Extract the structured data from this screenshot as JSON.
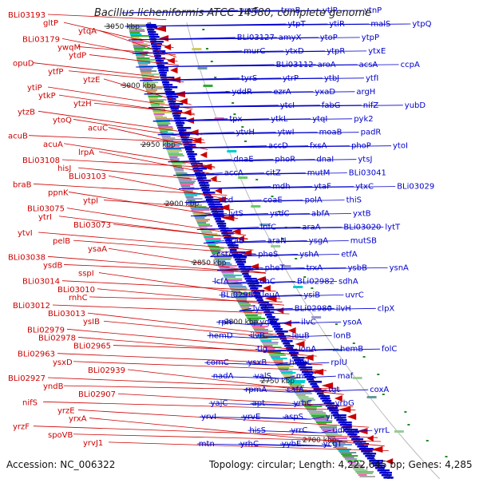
{
  "title": "Bacillus licheniformis ATCC 14580, complete genome",
  "footer": {
    "accession": "Accession: NC_006322",
    "summary": "Topology: circular; Length: 4,222,645 bp; Genes: 4,285"
  },
  "ruler_labels": [
    "3050 kbp",
    "3000 kbp",
    "2950 kbp",
    "2900 kbp",
    "2850 kbp",
    "2800 kbp",
    "2750 kbp",
    "2700 kbp"
  ],
  "colors": {
    "reverse_strand": "#cc0000",
    "forward_strand": "#0000cc",
    "highlight": "#33aadd",
    "backbone": "#888888",
    "track_green": "#228822"
  },
  "left_labels": [
    "BLi03193",
    "gltP",
    "ytqA",
    "BLi03179",
    "ywqM",
    "ytdP",
    "opuD",
    "ytfP",
    "ytzE",
    "ytiP",
    "ytkP",
    "ytzH",
    "ytzB",
    "ytoQ",
    "acuC",
    "acuB",
    "acuA",
    "lrpA",
    "BLi03108",
    "hisJ",
    "BLi03103",
    "braB",
    "ppnK",
    "ytpI",
    "BLi03075",
    "ytrI",
    "BLi03073",
    "ytvI",
    "pelB",
    "ysaA",
    "BLi03038",
    "ysdB",
    "sspI",
    "BLi03014",
    "BLi03010",
    "rnhC",
    "BLi03012",
    "BLi03013",
    "ysIB",
    "BLi02979",
    "BLi02978",
    "BLi02965",
    "BLi02963",
    "ysxD",
    "BLi02939",
    "BLi02927",
    "yndB",
    "BLi02907",
    "nifS",
    "yrzE",
    "yrxA",
    "yrzF",
    "spoVB",
    "yrvJ1"
  ],
  "right_labels": [
    "yncE",
    "trmB",
    "ytlP",
    "ytnP",
    "ytpT",
    "ytiR",
    "malS",
    "ytpQ",
    "BLi03127",
    "amyX",
    "ytoP",
    "ytpP",
    "murC",
    "ytxD",
    "ytpR",
    "ytxE",
    "BLi03112",
    "aroA",
    "acsA",
    "ccpA",
    "tyrS",
    "ytrP",
    "ytbJ",
    "ytfI",
    "yddR",
    "ezrA",
    "yxaD",
    "argH",
    "ytcI",
    "fabG",
    "nifZ",
    "yubD",
    "tpx",
    "ytkL",
    "ytqI",
    "pyk2",
    "ytvH",
    "ytwI",
    "moaB",
    "padR",
    "accD",
    "fxsA",
    "phoP",
    "ytoI",
    "dnaE",
    "phoR",
    "dnaI",
    "ytsJ",
    "accA",
    "citZ",
    "mutM",
    "BLi03041",
    "mdh",
    "ytaF",
    "ytxC",
    "BLi03029",
    "icd",
    "coaE",
    "polA",
    "thiS",
    "lytS",
    "ysdC",
    "abfA",
    "yxtB",
    "lnfC",
    "araA",
    "BLi03020",
    "lytT",
    "araB",
    "araN",
    "ysgA",
    "mutSB",
    "cstA",
    "pheS",
    "yshA",
    "etfA",
    "pheT",
    "trxA",
    "ysbB",
    "ysnA",
    "lcfA",
    "sdhC",
    "BLi02982",
    "sdhA",
    "BLi02981",
    "leuA",
    "ysiB",
    "uvrC",
    "lysC",
    "BLi02980",
    "ilvH",
    "clpX",
    "rph",
    "yqaT",
    "ilvC",
    "ysoA",
    "hemD",
    "ilvB",
    "leuB",
    "lonB",
    "tig",
    "lonA",
    "hemB",
    "folC",
    "comC",
    "ysxB",
    "hemL",
    "rplU",
    "nadA",
    "valS",
    "minC",
    "maf",
    "rpmA",
    "safA",
    "tgt",
    "coxA",
    "yajC",
    "apt",
    "yrbC",
    "yrbG",
    "yrvI",
    "yrvE",
    "aspS",
    "yrrI",
    "hisS",
    "yrrC",
    "udk",
    "yrrL",
    "mtn",
    "yrhC",
    "yybE",
    "ycgT"
  ],
  "highlight_label": "BLi02982"
}
